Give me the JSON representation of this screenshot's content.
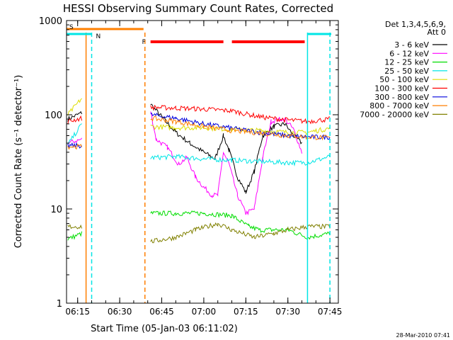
{
  "chart_data": {
    "type": "line",
    "title": "HESSI Observing Summary Count Rates, Corrected",
    "xlabel": "Start Time (05-Jan-03 06:11:02)",
    "ylabel": "Corrected Count Rate (s⁻¹ detector⁻¹)",
    "x_unit": "minutes",
    "xlim": [
      "06:11:02",
      "07:48:00"
    ],
    "ylim": [
      1,
      1000
    ],
    "y_scale": "log",
    "x_ticks": [
      "06:15",
      "06:30",
      "06:45",
      "07:00",
      "07:15",
      "07:30",
      "07:45"
    ],
    "y_ticks": [
      "1",
      "10",
      "100",
      "1000"
    ],
    "legend_header": [
      "Det 1,3,4,5,6,9,",
      "Att 0"
    ],
    "legend_position": "right",
    "timestamp": "28-Mar-2010 07:41",
    "flags": [
      {
        "label": "S",
        "color": "#ff7f00",
        "x": [
          "06:11:02",
          "06:38:30"
        ]
      },
      {
        "label": "N",
        "color": "#00e5e5",
        "x": [
          "06:11:02",
          "06:20:00"
        ]
      },
      {
        "label": "F",
        "color": "#ff0000",
        "x": [
          "06:41:00",
          "07:36:00"
        ]
      }
    ],
    "markers": [
      {
        "color": "#ff7f00",
        "style": "solid",
        "x": "06:18:00"
      },
      {
        "color": "#00e5e5",
        "style": "dashed",
        "x": "06:20:00"
      },
      {
        "color": "#ff7f00",
        "style": "dashed",
        "x": "06:39:00"
      },
      {
        "color": "#00e5e5",
        "style": "solid",
        "x": "07:37:00"
      },
      {
        "color": "#00e5e5",
        "style": "dashed",
        "x": "07:45:00"
      }
    ],
    "series": [
      {
        "name": "3 - 6 keV",
        "color": "#000000",
        "segments": [
          [
            [
              "06:11:30",
              90
            ],
            [
              "06:16:30",
              105
            ]
          ],
          [
            [
              "06:41:00",
              130
            ],
            [
              "06:45:00",
              95
            ],
            [
              "06:50:00",
              65
            ],
            [
              "06:55:00",
              50
            ],
            [
              "07:00:00",
              40
            ],
            [
              "07:04:00",
              34
            ],
            [
              "07:07:00",
              60
            ],
            [
              "07:09:00",
              42
            ],
            [
              "07:12:00",
              22
            ],
            [
              "07:15:00",
              15
            ],
            [
              "07:18:00",
              25
            ],
            [
              "07:21:00",
              60
            ],
            [
              "07:25:00",
              75
            ],
            [
              "07:29:00",
              80
            ],
            [
              "07:32:00",
              60
            ],
            [
              "07:35:00",
              50
            ]
          ]
        ]
      },
      {
        "name": "6 - 12 keV",
        "color": "#ff00ff",
        "segments": [
          [
            [
              "06:11:30",
              50
            ],
            [
              "06:16:30",
              55
            ]
          ],
          [
            [
              "06:41:00",
              110
            ],
            [
              "06:43:00",
              55
            ],
            [
              "06:47:00",
              45
            ],
            [
              "06:51:00",
              30
            ],
            [
              "06:54:00",
              35
            ],
            [
              "06:57:00",
              22
            ],
            [
              "07:00:00",
              17
            ],
            [
              "07:03:00",
              14
            ],
            [
              "07:05:00",
              14
            ],
            [
              "07:07:00",
              40
            ],
            [
              "07:09:00",
              30
            ],
            [
              "07:12:00",
              14
            ],
            [
              "07:15:00",
              9
            ],
            [
              "07:18:00",
              10
            ],
            [
              "07:21:00",
              35
            ],
            [
              "07:24:00",
              85
            ],
            [
              "07:27:00",
              90
            ],
            [
              "07:29:00",
              90
            ],
            [
              "07:32:00",
              70
            ],
            [
              "07:35:00",
              40
            ]
          ]
        ]
      },
      {
        "name": "12 - 25 keV",
        "color": "#00dd00",
        "segments": [
          [
            [
              "06:11:30",
              4.8
            ],
            [
              "06:16:30",
              5.5
            ]
          ],
          [
            [
              "06:41:00",
              9
            ],
            [
              "06:50:00",
              9
            ],
            [
              "07:00:00",
              9
            ],
            [
              "07:10:00",
              8.5
            ],
            [
              "07:16:00",
              6.5
            ],
            [
              "07:20:00",
              6
            ],
            [
              "07:25:00",
              6
            ],
            [
              "07:30:00",
              6
            ],
            [
              "07:37:00",
              5
            ],
            [
              "07:45:00",
              5.5
            ]
          ]
        ]
      },
      {
        "name": "25 - 50 keV",
        "color": "#00e5e5",
        "segments": [
          [
            [
              "06:11:30",
              48
            ],
            [
              "06:16:30",
              80
            ]
          ],
          [
            [
              "06:41:00",
              35
            ],
            [
              "06:50:00",
              36
            ],
            [
              "07:00:00",
              34
            ],
            [
              "07:10:00",
              33
            ],
            [
              "07:20:00",
              32
            ],
            [
              "07:30:00",
              31
            ],
            [
              "07:37:00",
              31
            ],
            [
              "07:45:00",
              36
            ]
          ]
        ]
      },
      {
        "name": "50 - 100 keV",
        "color": "#dddd00",
        "segments": [
          [
            [
              "06:11:30",
              100
            ],
            [
              "06:16:30",
              150
            ]
          ],
          [
            [
              "06:41:00",
              75
            ],
            [
              "06:50:00",
              73
            ],
            [
              "07:00:00",
              73
            ],
            [
              "07:10:00",
              70
            ],
            [
              "07:20:00",
              68
            ],
            [
              "07:30:00",
              65
            ],
            [
              "07:37:00",
              65
            ],
            [
              "07:45:00",
              72
            ]
          ]
        ]
      },
      {
        "name": "100 - 300 keV",
        "color": "#ff0000",
        "segments": [
          [
            [
              "06:11:30",
              85
            ],
            [
              "06:16:30",
              92
            ]
          ],
          [
            [
              "06:41:00",
              120
            ],
            [
              "06:50:00",
              118
            ],
            [
              "07:00:00",
              115
            ],
            [
              "07:10:00",
              110
            ],
            [
              "07:20:00",
              95
            ],
            [
              "07:30:00",
              88
            ],
            [
              "07:37:00",
              85
            ],
            [
              "07:45:00",
              90
            ]
          ]
        ]
      },
      {
        "name": "300 - 800 keV",
        "color": "#0000dd",
        "segments": [
          [
            [
              "06:11:30",
              47
            ],
            [
              "06:16:30",
              47
            ]
          ],
          [
            [
              "06:41:00",
              100
            ],
            [
              "06:50:00",
              92
            ],
            [
              "07:00:00",
              80
            ],
            [
              "07:10:00",
              72
            ],
            [
              "07:20:00",
              65
            ],
            [
              "07:30:00",
              60
            ],
            [
              "07:37:00",
              58
            ],
            [
              "07:45:00",
              58
            ]
          ]
        ]
      },
      {
        "name": "800 - 7000 keV",
        "color": "#ff7f00",
        "segments": [
          [
            [
              "06:11:30",
              46
            ],
            [
              "06:16:30",
              46
            ]
          ],
          [
            [
              "06:41:00",
              92
            ],
            [
              "06:50:00",
              85
            ],
            [
              "07:00:00",
              75
            ],
            [
              "07:10:00",
              68
            ],
            [
              "07:20:00",
              64
            ],
            [
              "07:30:00",
              60
            ],
            [
              "07:37:00",
              58
            ],
            [
              "07:45:00",
              57
            ]
          ]
        ]
      },
      {
        "name": "7000 - 20000 keV",
        "color": "#808000",
        "segments": [
          [
            [
              "06:11:30",
              6.5
            ],
            [
              "06:16:30",
              6.5
            ]
          ],
          [
            [
              "06:41:00",
              4.5
            ],
            [
              "06:50:00",
              5
            ],
            [
              "06:57:00",
              6
            ],
            [
              "07:05:00",
              7
            ],
            [
              "07:10:00",
              6
            ],
            [
              "07:18:00",
              5
            ],
            [
              "07:25:00",
              5.5
            ],
            [
              "07:30:00",
              6
            ],
            [
              "07:37:00",
              6.5
            ],
            [
              "07:45:00",
              6.5
            ]
          ]
        ]
      }
    ]
  }
}
